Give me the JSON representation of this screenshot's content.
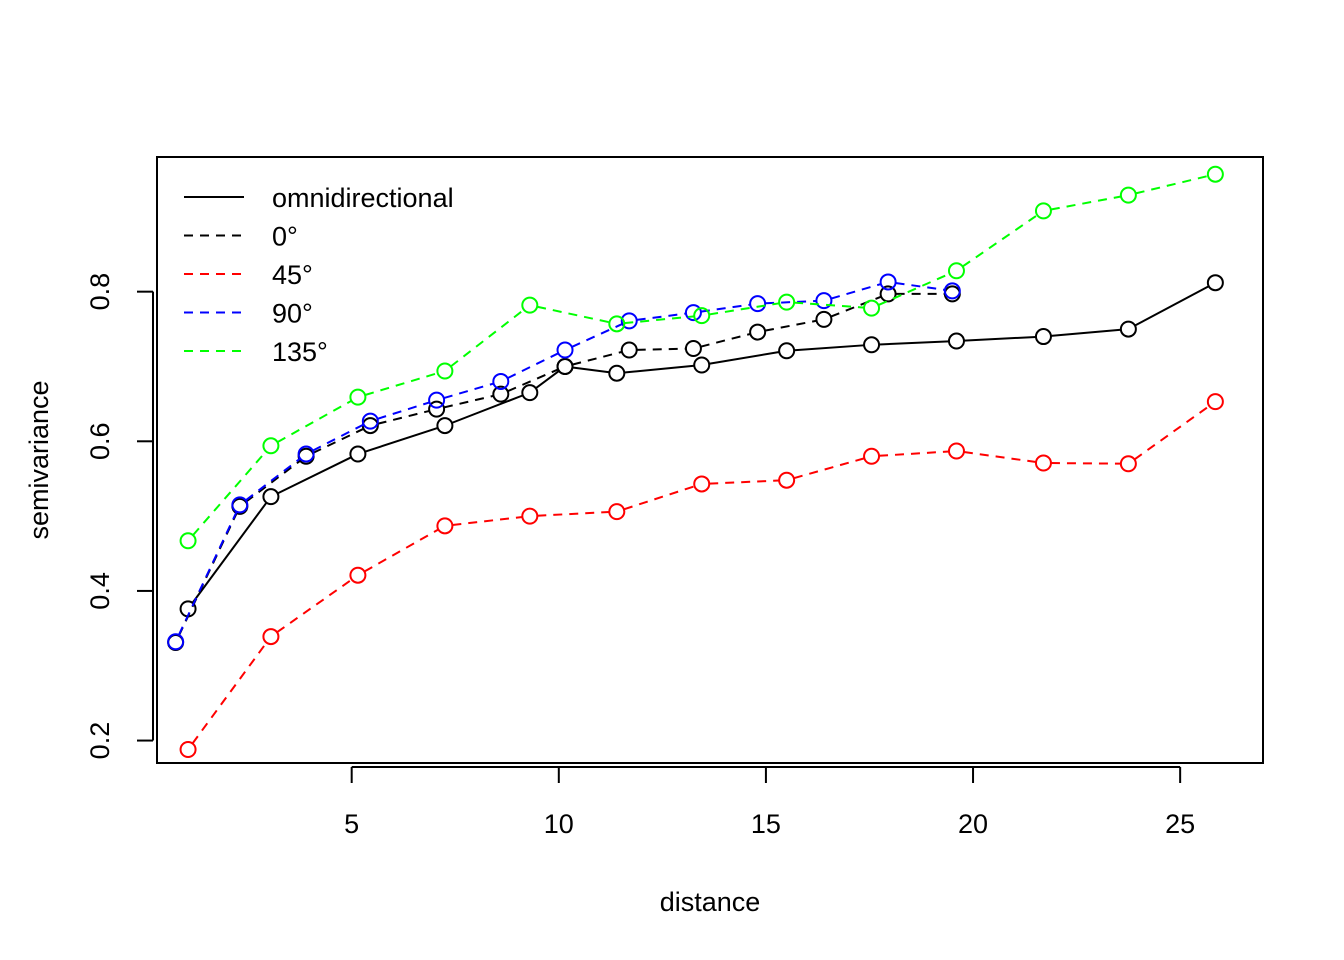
{
  "chart_data": {
    "type": "line",
    "title": "",
    "xlabel": "distance",
    "ylabel": "semivariance",
    "xlim": [
      0.3,
      27.0
    ],
    "ylim": [
      0.17,
      0.98
    ],
    "xticks": [
      5,
      10,
      15,
      20,
      25
    ],
    "yticks": [
      0.2,
      0.4,
      0.6,
      0.8
    ],
    "xtick_labels": [
      "5",
      "10",
      "15",
      "20",
      "25"
    ],
    "ytick_labels": [
      "0.2",
      "0.4",
      "0.6",
      "0.8"
    ],
    "grid": false,
    "legend_position": "top-left",
    "markers": "open-circle",
    "series": [
      {
        "name": "omnidirectional",
        "color": "#000000",
        "dash": "solid",
        "x": [
          1.05,
          3.05,
          5.15,
          7.25,
          9.3,
          10.15,
          11.4,
          13.45,
          15.5,
          17.55,
          19.6,
          21.7,
          23.75,
          25.85
        ],
        "y": [
          0.376,
          0.526,
          0.583,
          0.621,
          0.665,
          0.7,
          0.691,
          0.702,
          0.721,
          0.729,
          0.734,
          0.74,
          0.75,
          0.812
        ]
      },
      {
        "name": "0°",
        "color": "#000000",
        "dash": "dashed",
        "x": [
          0.75,
          2.3,
          3.9,
          5.45,
          7.05,
          8.6,
          10.15,
          11.7,
          13.25,
          14.8,
          16.4,
          17.95,
          19.5
        ],
        "y": [
          0.331,
          0.513,
          0.58,
          0.621,
          0.643,
          0.663,
          0.7,
          0.722,
          0.724,
          0.746,
          0.763,
          0.797,
          0.797
        ]
      },
      {
        "name": "45°",
        "color": "#ff0000",
        "dash": "dashed",
        "x": [
          1.05,
          3.05,
          5.15,
          7.25,
          9.3,
          11.4,
          13.45,
          15.5,
          17.55,
          19.6,
          21.7,
          23.75,
          25.85
        ],
        "y": [
          0.188,
          0.339,
          0.421,
          0.487,
          0.5,
          0.506,
          0.543,
          0.548,
          0.58,
          0.587,
          0.571,
          0.57,
          0.653
        ]
      },
      {
        "name": "90°",
        "color": "#0000ff",
        "dash": "dashed",
        "x": [
          0.75,
          2.3,
          3.9,
          5.45,
          7.05,
          8.6,
          10.15,
          11.7,
          13.25,
          14.8,
          16.4,
          17.95,
          19.5
        ],
        "y": [
          0.332,
          0.515,
          0.583,
          0.627,
          0.655,
          0.68,
          0.722,
          0.761,
          0.772,
          0.784,
          0.788,
          0.813,
          0.801
        ]
      },
      {
        "name": "135°",
        "color": "#00ff00",
        "dash": "dashed",
        "x": [
          1.05,
          3.05,
          5.15,
          7.25,
          9.3,
          11.4,
          13.45,
          15.5,
          17.55,
          19.6,
          21.7,
          23.75,
          25.85
        ],
        "y": [
          0.467,
          0.594,
          0.659,
          0.694,
          0.782,
          0.757,
          0.768,
          0.786,
          0.778,
          0.828,
          0.908,
          0.929,
          0.957
        ]
      }
    ]
  }
}
